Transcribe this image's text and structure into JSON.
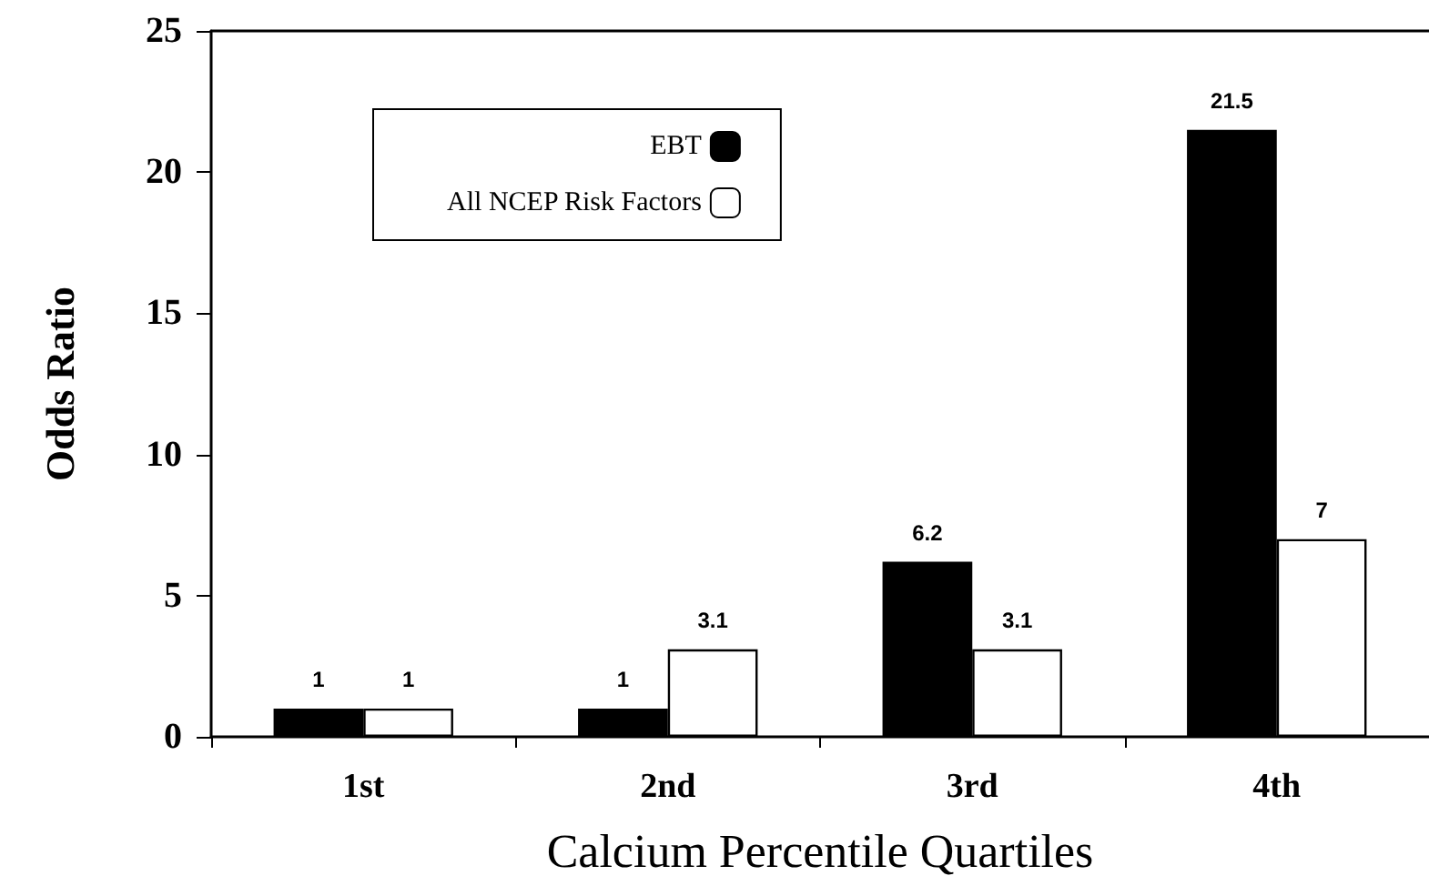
{
  "chart_data": {
    "type": "bar",
    "xlabel": "Calcium Percentile Quartiles",
    "ylabel": "Odds Ratio",
    "categories": [
      "1st",
      "2nd",
      "3rd",
      "4th"
    ],
    "series": [
      {
        "name": "EBT",
        "color": "#000000",
        "values": [
          1,
          1,
          6.2,
          21.5
        ]
      },
      {
        "name": "All NCEP Risk Factors",
        "color": "#ffffff",
        "values": [
          1,
          3.1,
          3.1,
          7
        ]
      }
    ],
    "ylim": [
      0,
      25
    ],
    "yticks": [
      0,
      5,
      10,
      15,
      20,
      25
    ],
    "grid": false,
    "legend": "top left",
    "data_labels": true
  }
}
